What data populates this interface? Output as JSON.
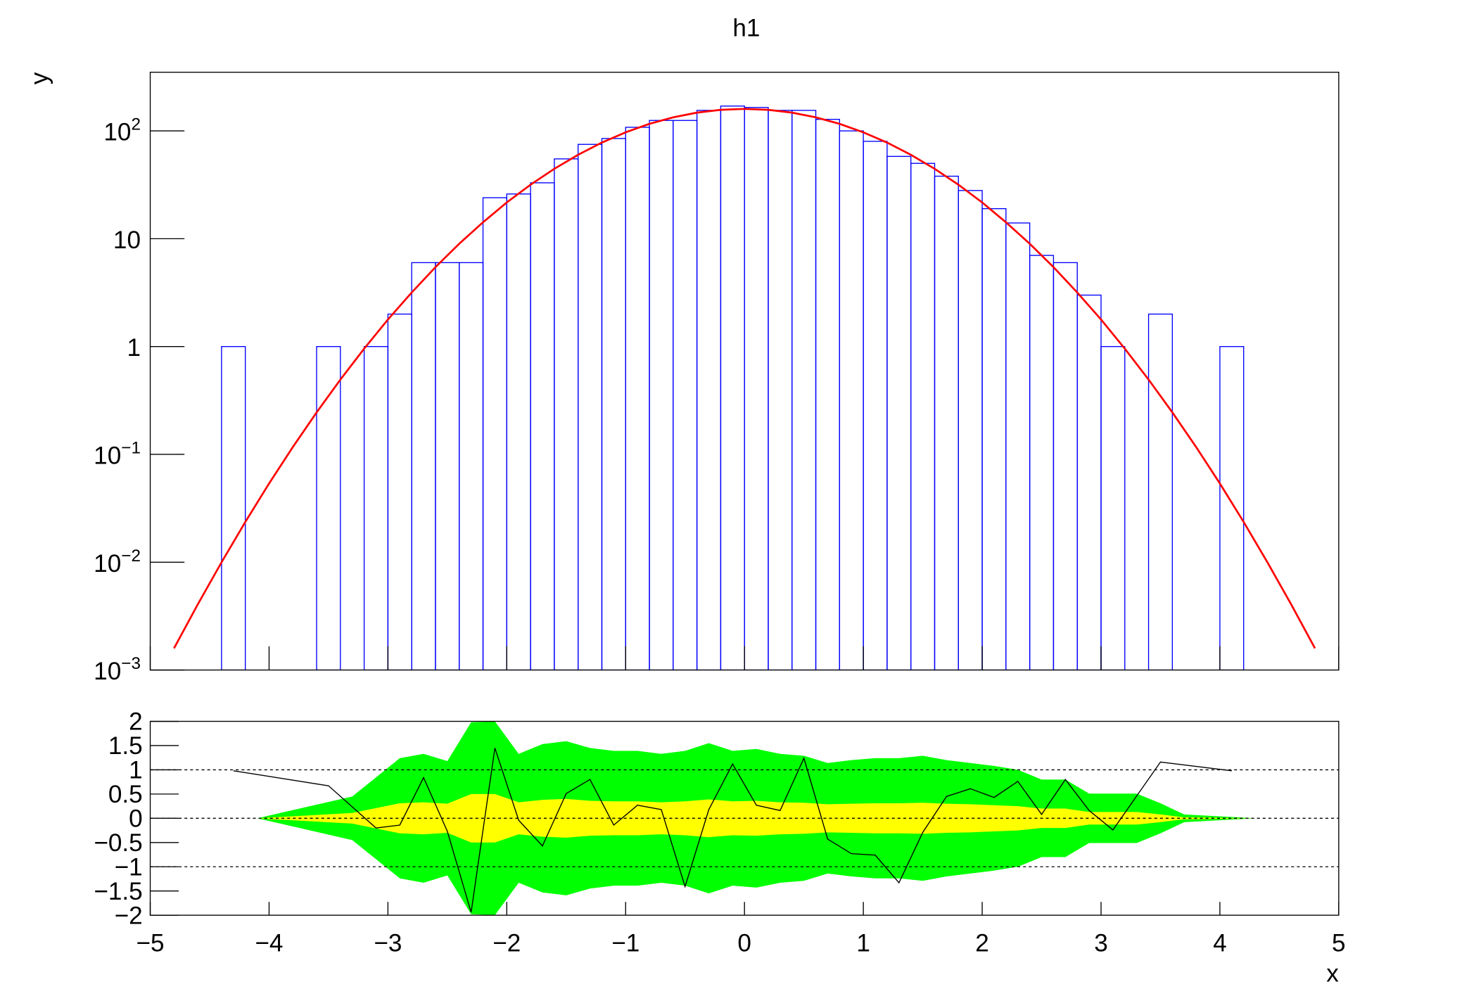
{
  "chart_data": [
    {
      "type": "histogram",
      "title": "h1",
      "y_label": "y",
      "color": "#0000ff",
      "yscale": "log",
      "bins": [
        -5,
        -4.8,
        -4.6,
        -4.4,
        -4.2,
        -4,
        -3.8,
        -3.6,
        -3.4,
        -3.2,
        -3,
        -2.8,
        -2.6,
        -2.4,
        -2.2,
        -2,
        -1.8,
        -1.6,
        -1.4,
        -1.2,
        -1,
        -0.8,
        -0.6,
        -0.4,
        -0.2,
        0,
        0.2,
        0.4,
        0.6,
        0.8,
        1,
        1.2,
        1.4,
        1.6,
        1.8,
        2,
        2.2,
        2.4,
        2.6,
        2.8,
        3,
        3.2,
        3.4,
        3.6,
        3.8,
        4,
        4.2,
        4.4,
        4.6,
        4.8,
        5
      ],
      "values": [
        0,
        0,
        0,
        1,
        0,
        0,
        0,
        1,
        0,
        1,
        2,
        6,
        6,
        6,
        24,
        26,
        33,
        55,
        75,
        85,
        108,
        125,
        125,
        155,
        170,
        165,
        155,
        155,
        128,
        100,
        80,
        58,
        50,
        38,
        28,
        19,
        14,
        7,
        6,
        3,
        1,
        0,
        2,
        0,
        0,
        1,
        0,
        0,
        0,
        0
      ],
      "fit": {
        "color": "#ff0000",
        "x": [
          -4.8,
          -4.6,
          -4.4,
          -4.2,
          -4,
          -3.8,
          -3.6,
          -3.4,
          -3.2,
          -3,
          -2.8,
          -2.6,
          -2.4,
          -2.2,
          -2,
          -1.8,
          -1.6,
          -1.4,
          -1.2,
          -1,
          -0.8,
          -0.6,
          -0.4,
          -0.2,
          0,
          0.2,
          0.4,
          0.6,
          0.8,
          1,
          1.2,
          1.4,
          1.6,
          1.8,
          2,
          2.2,
          2.4,
          2.6,
          2.8,
          3,
          3.2,
          3.4,
          3.6,
          3.8,
          4,
          4.2,
          4.4,
          4.6,
          4.8
        ],
        "values": [
          0.00159,
          0.00406,
          0.00998,
          0.0236,
          0.0537,
          0.117,
          0.245,
          0.494,
          0.956,
          1.78,
          3.17,
          5.45,
          8.98,
          14.2,
          21.7,
          31.7,
          44.5,
          60.0,
          77.9,
          97.0,
          116.2,
          133.6,
          147.7,
          156.8,
          160,
          156.8,
          147.7,
          133.6,
          116.2,
          97.0,
          77.9,
          60.0,
          44.5,
          31.7,
          21.7,
          14.2,
          8.98,
          5.45,
          3.17,
          1.78,
          0.956,
          0.494,
          0.245,
          0.117,
          0.0537,
          0.0236,
          0.00998,
          0.00406,
          0.00159
        ]
      },
      "xlim": [
        -5,
        5
      ],
      "xticks": [
        -5,
        -4,
        -3,
        -2,
        -1,
        0,
        1,
        2,
        3,
        4,
        5
      ],
      "ylim": [
        0.001,
        350
      ],
      "yticks": [
        {
          "value": 0.001,
          "label": "10",
          "exponent": "−3"
        },
        {
          "value": 0.01,
          "label": "10",
          "exponent": "−2"
        },
        {
          "value": 0.1,
          "label": "10",
          "exponent": "−1"
        },
        1,
        10,
        {
          "value": 100,
          "label": "10",
          "exponent": "2"
        }
      ]
    },
    {
      "type": "residual",
      "x_label": "x",
      "line_color": "#000000",
      "x": [
        -4.3,
        -3.5,
        -3.1,
        -2.9,
        -2.7,
        -2.5,
        -2.3,
        -2.1,
        -1.9,
        -1.7,
        -1.5,
        -1.3,
        -1.1,
        -0.9,
        -0.7,
        -0.5,
        -0.3,
        -0.1,
        0.1,
        0.3,
        0.5,
        0.7,
        0.9,
        1.1,
        1.3,
        1.5,
        1.7,
        1.9,
        2.1,
        2.3,
        2.5,
        2.7,
        2.9,
        3.1,
        3.5,
        4.1
      ],
      "values": [
        0.98,
        0.67,
        -0.2,
        -0.14,
        0.84,
        -0.27,
        -1.94,
        1.45,
        -0.04,
        -0.57,
        0.51,
        0.8,
        -0.14,
        0.27,
        0.18,
        -1.41,
        0.18,
        1.12,
        0.27,
        0.16,
        1.24,
        -0.43,
        -0.73,
        -0.76,
        -1.33,
        -0.29,
        0.45,
        0.61,
        0.43,
        0.76,
        0.08,
        0.8,
        0.16,
        -0.24,
        1.16,
        0.98
      ],
      "band_x": [
        -4.1,
        -3.3,
        -2.9,
        -2.7,
        -2.5,
        -2.3,
        -2.1,
        -1.9,
        -1.7,
        -1.5,
        -1.3,
        -1.1,
        -0.9,
        -0.7,
        -0.5,
        -0.3,
        -0.1,
        0.1,
        0.3,
        0.5,
        0.7,
        0.9,
        1.1,
        1.3,
        1.5,
        1.7,
        1.9,
        2.1,
        2.3,
        2.5,
        2.7,
        2.9,
        3.1,
        3.3,
        3.5,
        3.7,
        4.3
      ],
      "band_outer": {
        "color": "#00ff00",
        "values": [
          0,
          0.45,
          1.24,
          1.33,
          1.18,
          1.98,
          2.0,
          1.33,
          1.53,
          1.59,
          1.45,
          1.39,
          1.39,
          1.33,
          1.39,
          1.55,
          1.39,
          1.43,
          1.33,
          1.29,
          1.14,
          1.2,
          1.24,
          1.24,
          1.29,
          1.2,
          1.14,
          1.08,
          1.0,
          0.8,
          0.8,
          0.51,
          0.51,
          0.51,
          0.31,
          0.08,
          0
        ]
      },
      "band_inner": {
        "color": "#ffff00",
        "values": [
          0,
          0.11,
          0.31,
          0.33,
          0.3,
          0.5,
          0.5,
          0.33,
          0.38,
          0.4,
          0.36,
          0.35,
          0.35,
          0.33,
          0.35,
          0.39,
          0.35,
          0.36,
          0.33,
          0.32,
          0.29,
          0.3,
          0.31,
          0.31,
          0.32,
          0.3,
          0.29,
          0.27,
          0.25,
          0.2,
          0.2,
          0.13,
          0.13,
          0.13,
          0.08,
          0.02,
          0
        ]
      },
      "reference_lines": [
        -1,
        0,
        1
      ],
      "xlim": [
        -5,
        5
      ],
      "xticks": [
        {
          "value": -5,
          "label": "−5"
        },
        {
          "value": -4,
          "label": "−4"
        },
        {
          "value": -3,
          "label": "−3"
        },
        {
          "value": -2,
          "label": "−2"
        },
        {
          "value": -1,
          "label": "−1"
        },
        0,
        1,
        2,
        3,
        4,
        5
      ],
      "ylim": [
        -2,
        2
      ],
      "yticks": [
        {
          "value": -2,
          "label": "−2"
        },
        {
          "value": -1.5,
          "label": "−1.5"
        },
        {
          "value": -1,
          "label": "−1"
        },
        {
          "value": -0.5,
          "label": "−0.5"
        },
        0,
        0.5,
        1,
        1.5,
        2
      ]
    }
  ]
}
